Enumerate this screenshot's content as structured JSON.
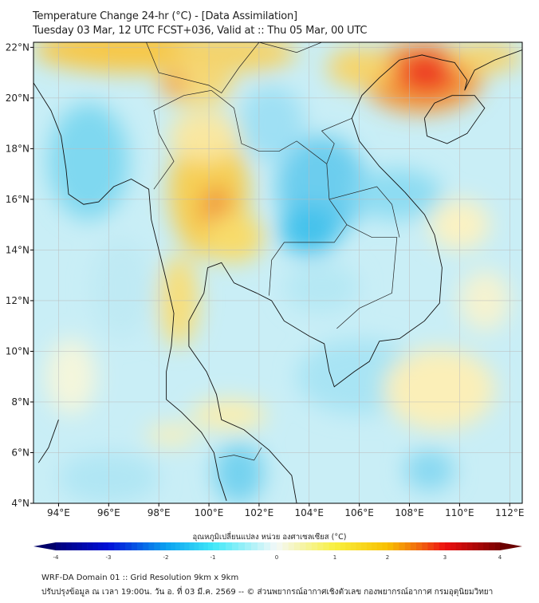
{
  "header": {
    "title": "Temperature Change 24-hr (°C) - [Data Assimilation]",
    "subtitle": "Tuesday 03 Mar, 12 UTC FCST+036, Valid at :: Thu 05 Mar, 00 UTC"
  },
  "map": {
    "lon_range": [
      93,
      112.5
    ],
    "lat_range": [
      4,
      22.2
    ],
    "lon_ticks": [
      "94°E",
      "96°E",
      "98°E",
      "100°E",
      "102°E",
      "104°E",
      "106°E",
      "108°E",
      "110°E",
      "112°E"
    ],
    "lon_values": [
      94,
      96,
      98,
      100,
      102,
      104,
      106,
      108,
      110,
      112
    ],
    "lat_ticks": [
      "22°N",
      "20°N",
      "18°N",
      "16°N",
      "14°N",
      "12°N",
      "10°N",
      "8°N",
      "6°N",
      "4°N"
    ],
    "lat_values": [
      22,
      20,
      18,
      16,
      14,
      12,
      10,
      8,
      6,
      4
    ]
  },
  "colorbar": {
    "label": "อุณหภูมิเปลี่ยนแปลง หน่วย องศาเซลเซียส (°C)",
    "ticks": [
      "-4",
      "-3",
      "-2",
      "-1",
      "0",
      "1",
      "2",
      "3",
      "4"
    ],
    "range": [
      -4,
      4
    ]
  },
  "footer": {
    "line1": "WRF-DA Domain 01 :: Grid Resolution 9km x 9km",
    "line2": "ปรับปรุงข้อมูล ณ เวลา 19:00น. วัน อ. ที่ 03 มี.ค. 2569 -- © ส่วนพยากรณ์อากาศเชิงตัวเลข กองพยากรณ์อากาศ กรมอุตุนิยมวิทยา"
  }
}
